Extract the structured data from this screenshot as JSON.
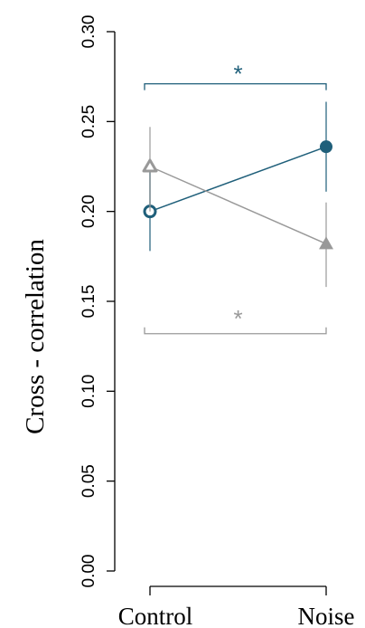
{
  "chart_data": {
    "type": "line",
    "ylabel": "Cross - correlation",
    "ylim": [
      0,
      0.3
    ],
    "yticks": [
      "0.00",
      "0.05",
      "0.10",
      "0.15",
      "0.20",
      "0.25",
      "0.30"
    ],
    "categories": [
      "Control",
      "Noise"
    ],
    "grid": false,
    "legend": "none",
    "series": [
      {
        "values": [
          0.2,
          0.236
        ],
        "err_low": [
          0.178,
          0.211
        ],
        "err_high": [
          0.222,
          0.261
        ],
        "markers": [
          "open-circle",
          "filled-circle"
        ],
        "color": "#1f5f7a"
      },
      {
        "values": [
          0.225,
          0.182
        ],
        "err_low": [
          0.2,
          0.158
        ],
        "err_high": [
          0.247,
          0.205
        ],
        "markers": [
          "open-triangle",
          "filled-triangle"
        ],
        "color": "#999999"
      }
    ],
    "significance": [
      {
        "label": "*",
        "y": 0.271,
        "color": "#1f5f7a",
        "direction": "down"
      },
      {
        "label": "*",
        "y": 0.132,
        "color": "#999999",
        "direction": "up"
      }
    ]
  }
}
